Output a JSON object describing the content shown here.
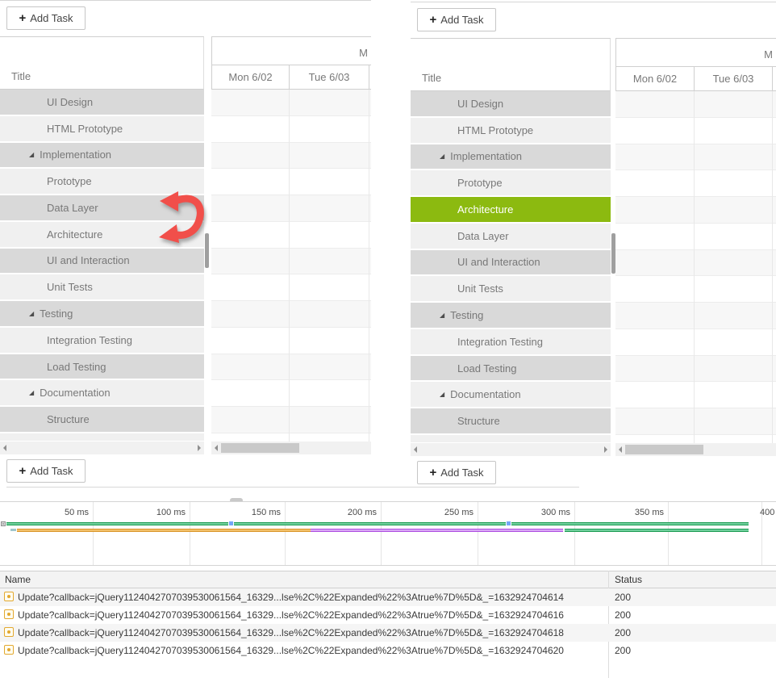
{
  "colors": {
    "selected_green": "#8cba10",
    "row_dark": "#d9d9d9",
    "row_light": "#f0f0f0",
    "swap_arrow_red": "#f14f4a",
    "bar_green": "#1d9b52",
    "bar_orange": "#e9a63a",
    "bar_purple": "#bb5cf0",
    "bar_blue_dot": "#74a6f8"
  },
  "gantt": {
    "add_task_plus": "+",
    "add_task_label": "Add Task",
    "title_header": "Title",
    "month_header_clipped": "M",
    "day_headers": {
      "d1": "Mon 6/02",
      "d2": "Tue 6/03"
    },
    "collapse_glyph": "◢",
    "left_rows": [
      {
        "label": "UI Design"
      },
      {
        "label": "HTML Prototype"
      },
      {
        "label": "Implementation",
        "parent": true
      },
      {
        "label": "Prototype"
      },
      {
        "label": "Data Layer"
      },
      {
        "label": "Architecture"
      },
      {
        "label": "UI and Interaction"
      },
      {
        "label": "Unit Tests"
      },
      {
        "label": "Testing",
        "parent": true
      },
      {
        "label": "Integration Testing"
      },
      {
        "label": "Load Testing"
      },
      {
        "label": "Documentation",
        "parent": true
      },
      {
        "label": "Structure"
      }
    ],
    "right_rows": [
      {
        "label": "UI Design"
      },
      {
        "label": "HTML Prototype"
      },
      {
        "label": "Implementation",
        "parent": true
      },
      {
        "label": "Prototype"
      },
      {
        "label": "Architecture",
        "selected": true
      },
      {
        "label": "Data Layer"
      },
      {
        "label": "UI and Interaction"
      },
      {
        "label": "Unit Tests"
      },
      {
        "label": "Testing",
        "parent": true
      },
      {
        "label": "Integration Testing"
      },
      {
        "label": "Load Testing"
      },
      {
        "label": "Documentation",
        "parent": true
      },
      {
        "label": "Structure"
      }
    ]
  },
  "devtools": {
    "timeline": {
      "ticks": [
        "50 ms",
        "100 ms",
        "150 ms",
        "200 ms",
        "250 ms",
        "300 ms",
        "350 ms",
        "400 ms"
      ],
      "bars": [
        {
          "row": 0,
          "kind": "chip",
          "at_ms": 2
        },
        {
          "row": 0,
          "kind": "green",
          "from_ms": 5,
          "to_ms": 121
        },
        {
          "row": 0,
          "kind": "dot",
          "at_ms": 121.5
        },
        {
          "row": 0,
          "kind": "green",
          "from_ms": 124,
          "to_ms": 266
        },
        {
          "row": 0,
          "kind": "dot",
          "at_ms": 266.5
        },
        {
          "row": 0,
          "kind": "green",
          "from_ms": 269,
          "to_ms": 393
        },
        {
          "row": 1,
          "kind": "teal",
          "from_ms": 7,
          "to_ms": 10
        },
        {
          "row": 1,
          "kind": "orange",
          "from_ms": 10.5,
          "to_ms": 164
        },
        {
          "row": 1,
          "kind": "purple",
          "from_ms": 164,
          "to_ms": 296
        },
        {
          "row": 1,
          "kind": "green",
          "from_ms": 297,
          "to_ms": 393
        }
      ]
    },
    "network_table": {
      "columns": {
        "name": "Name",
        "status": "Status"
      },
      "rows": [
        {
          "name": "Update?callback=jQuery1124042707039530061564_16329...lse%2C%22Expanded%22%3Atrue%7D%5D&_=1632924704614",
          "status": "200"
        },
        {
          "name": "Update?callback=jQuery1124042707039530061564_16329...lse%2C%22Expanded%22%3Atrue%7D%5D&_=1632924704616",
          "status": "200"
        },
        {
          "name": "Update?callback=jQuery1124042707039530061564_16329...lse%2C%22Expanded%22%3Atrue%7D%5D&_=1632924704618",
          "status": "200"
        },
        {
          "name": "Update?callback=jQuery1124042707039530061564_16329...lse%2C%22Expanded%22%3Atrue%7D%5D&_=1632924704620",
          "status": "200"
        }
      ]
    }
  }
}
